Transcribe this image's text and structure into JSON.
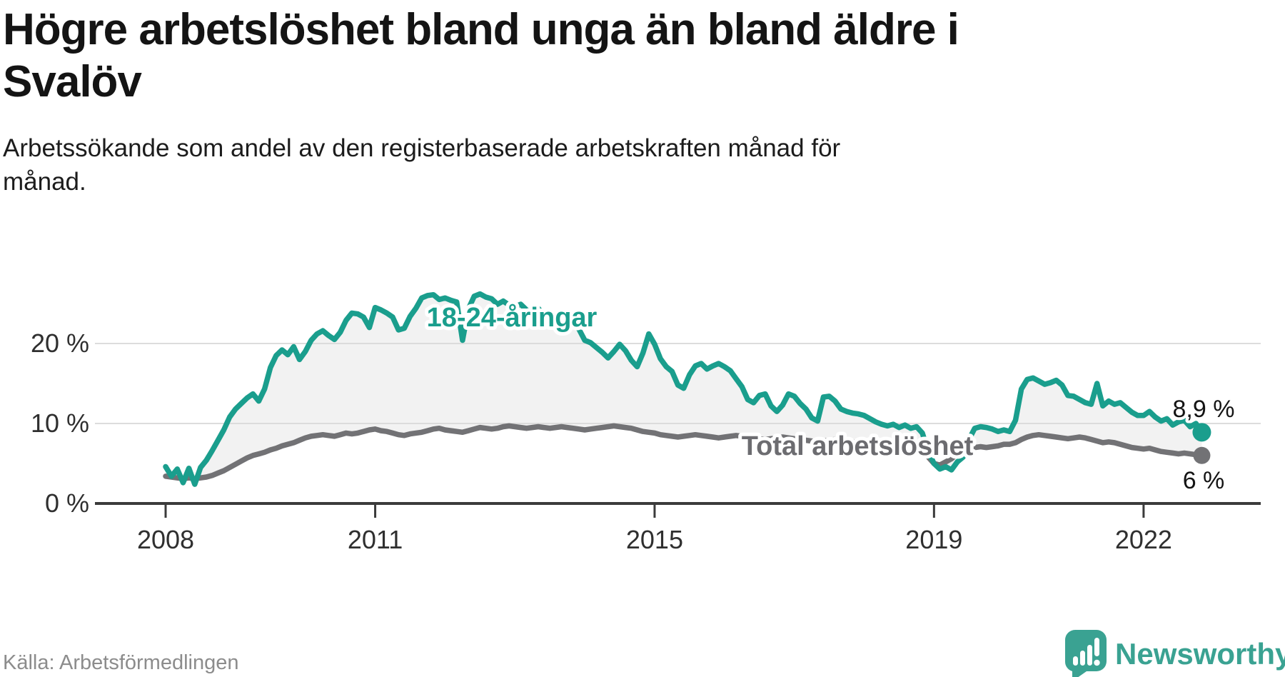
{
  "header": {
    "title": "Högre arbetslöshet bland unga än bland äldre i Svalöv",
    "title_lines": [
      "Högre arbetslöshet bland unga än bland äldre i",
      "Svalöv"
    ],
    "subtitle": "Arbetssökande som andel av den registerbaserade arbetskraften månad för månad.",
    "subtitle_lines": [
      "Arbetssökande som andel av den registerbaserade arbetskraften månad för",
      "månad."
    ]
  },
  "footer": {
    "source": "Källa: Arbetsförmedlingen",
    "brand": "Newsworthy"
  },
  "colors": {
    "youth_line": "#1a9e8d",
    "total_line": "#727275",
    "total_label": "#6c6c70",
    "band_fill": "#f2f2f2",
    "grid": "#dcdcdc",
    "axis": "#3b3b3b",
    "brand_teal": "#3aa292",
    "source_gray": "#8c8c8c"
  },
  "chart_data": {
    "type": "line",
    "title": "Högre arbetslöshet bland unga än bland äldre i Svalöv",
    "subtitle": "Arbetssökande som andel av den registerbaserade arbetskraften månad för månad.",
    "unit": "%",
    "x_start_year": 2008,
    "x_interval": "monthly",
    "x_end": "2022-11",
    "ylim": [
      0,
      27
    ],
    "grid": true,
    "legend_position": "inline-labels",
    "y_ticks": [
      0,
      10,
      20
    ],
    "y_tick_labels": [
      "0 %",
      "10 %",
      "20 %"
    ],
    "x_ticks": [
      2008,
      2011,
      2015,
      2019,
      2022
    ],
    "x_tick_labels": [
      "2008",
      "2011",
      "2015",
      "2019",
      "2022"
    ],
    "series": [
      {
        "name": "18-24-åringar",
        "color": "#1a9e8d",
        "end_label": "8,9 %",
        "end_value": 8.9,
        "values": [
          4.6,
          3.4,
          4.3,
          2.6,
          4.4,
          2.4,
          4.5,
          5.4,
          6.6,
          7.9,
          9.2,
          10.8,
          11.8,
          12.5,
          13.2,
          13.7,
          12.8,
          14.3,
          17.0,
          18.5,
          19.2,
          18.6,
          19.6,
          18.0,
          19.0,
          20.4,
          21.2,
          21.6,
          21.0,
          20.5,
          21.4,
          22.9,
          23.8,
          23.7,
          23.3,
          22.0,
          24.5,
          24.2,
          23.8,
          23.3,
          21.7,
          21.9,
          23.4,
          24.4,
          25.7,
          26.0,
          26.1,
          25.5,
          25.7,
          25.4,
          25.2,
          20.4,
          24.3,
          25.9,
          26.2,
          25.8,
          25.6,
          24.9,
          25.3,
          24.8,
          24.6,
          24.9,
          24.2,
          23.7,
          24.4,
          23.5,
          23.0,
          23.6,
          22.8,
          23.2,
          22.5,
          21.8,
          20.4,
          20.1,
          19.5,
          18.9,
          18.2,
          19.0,
          19.9,
          19.1,
          17.9,
          17.1,
          18.8,
          21.2,
          19.9,
          18.1,
          17.1,
          16.5,
          14.8,
          14.4,
          16.1,
          17.2,
          17.5,
          16.8,
          17.2,
          17.5,
          17.1,
          16.6,
          15.6,
          14.6,
          13.0,
          12.6,
          13.5,
          13.7,
          12.2,
          11.5,
          12.3,
          13.7,
          13.4,
          12.5,
          11.8,
          10.7,
          10.3,
          13.3,
          13.4,
          12.8,
          11.8,
          11.5,
          11.3,
          11.2,
          11.0,
          10.6,
          10.2,
          9.9,
          9.7,
          9.9,
          9.5,
          9.8,
          9.4,
          9.6,
          8.8,
          6.5,
          5.0,
          4.3,
          4.6,
          4.2,
          5.2,
          5.8,
          8.0,
          9.4,
          9.6,
          9.5,
          9.3,
          9.0,
          9.2,
          9.0,
          10.4,
          14.3,
          15.5,
          15.7,
          15.3,
          14.9,
          15.1,
          15.4,
          14.8,
          13.5,
          13.4,
          13.0,
          12.6,
          12.4,
          15.0,
          12.2,
          12.8,
          12.4,
          12.6,
          12.0,
          11.4,
          11.0,
          11.0,
          11.5,
          10.8,
          10.3,
          10.6,
          9.8,
          10.2,
          10.4,
          9.6,
          10.0,
          8.9
        ]
      },
      {
        "name": "Total arbetslöshet",
        "color": "#727275",
        "end_label": "6 %",
        "end_value": 6.0,
        "values": [
          3.4,
          3.3,
          3.2,
          3.1,
          3.2,
          3.1,
          3.2,
          3.3,
          3.5,
          3.8,
          4.1,
          4.5,
          4.9,
          5.3,
          5.7,
          6.0,
          6.2,
          6.4,
          6.7,
          6.9,
          7.2,
          7.4,
          7.6,
          7.9,
          8.2,
          8.4,
          8.5,
          8.6,
          8.5,
          8.4,
          8.6,
          8.8,
          8.7,
          8.8,
          9.0,
          9.2,
          9.3,
          9.1,
          9.0,
          8.8,
          8.6,
          8.5,
          8.7,
          8.8,
          8.9,
          9.1,
          9.3,
          9.4,
          9.2,
          9.1,
          9.0,
          8.9,
          9.1,
          9.3,
          9.5,
          9.4,
          9.3,
          9.4,
          9.6,
          9.7,
          9.6,
          9.5,
          9.4,
          9.5,
          9.6,
          9.5,
          9.4,
          9.5,
          9.6,
          9.5,
          9.4,
          9.3,
          9.2,
          9.3,
          9.4,
          9.5,
          9.6,
          9.7,
          9.6,
          9.5,
          9.4,
          9.2,
          9.0,
          8.9,
          8.8,
          8.6,
          8.5,
          8.4,
          8.3,
          8.4,
          8.5,
          8.6,
          8.5,
          8.4,
          8.3,
          8.2,
          8.3,
          8.4,
          8.5,
          8.4,
          8.3,
          8.2,
          8.1,
          8.0,
          8.1,
          8.2,
          8.3,
          8.2,
          8.1,
          8.0,
          7.9,
          7.8,
          7.7,
          7.8,
          7.9,
          8.0,
          7.9,
          7.8,
          7.7,
          7.6,
          7.5,
          7.4,
          7.3,
          7.2,
          7.1,
          7.2,
          7.3,
          7.2,
          7.1,
          7.0,
          6.6,
          5.8,
          5.0,
          4.8,
          5.2,
          5.6,
          6.2,
          6.6,
          6.9,
          7.0,
          7.1,
          7.0,
          7.1,
          7.2,
          7.4,
          7.4,
          7.6,
          8.0,
          8.3,
          8.5,
          8.6,
          8.5,
          8.4,
          8.3,
          8.2,
          8.1,
          8.2,
          8.3,
          8.2,
          8.0,
          7.8,
          7.6,
          7.7,
          7.6,
          7.4,
          7.2,
          7.0,
          6.9,
          6.8,
          6.9,
          6.7,
          6.5,
          6.4,
          6.3,
          6.2,
          6.3,
          6.2,
          6.1,
          6.0
        ]
      }
    ]
  }
}
